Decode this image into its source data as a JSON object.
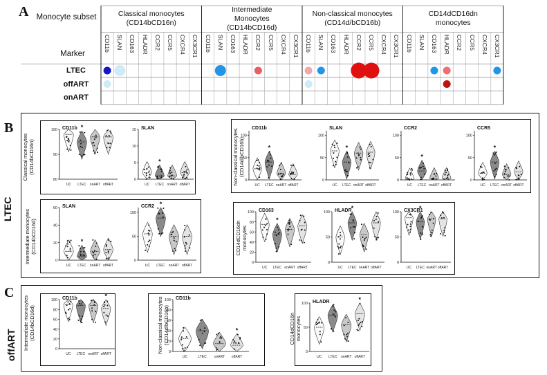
{
  "panelA": {
    "letter": "A",
    "subset_label": "Monocyte subset",
    "marker_label": "Marker",
    "groups": [
      {
        "name": "Classical monocytes\n(CD14bCD16n)"
      },
      {
        "name": "Intermediate\nMonocytes\n(CD14bCD16d)"
      },
      {
        "name": "Non-classical monocytes\n(CD14d/bCD16b)"
      },
      {
        "name": "CD14dCD16dn\nmonocytes"
      }
    ],
    "markers": [
      "CD11b",
      "SLAN",
      "CD163",
      "HLADR",
      "CCR2",
      "CCR5",
      "CXCR4",
      "CX3CR1"
    ],
    "rows": [
      "LTEC",
      "offART",
      "onART"
    ],
    "dots": [
      {
        "row": 0,
        "group": 0,
        "marker": 0,
        "size": "small",
        "color": "#1515c8"
      },
      {
        "row": 0,
        "group": 0,
        "marker": 1,
        "size": "medium",
        "color": "#cfeaf8"
      },
      {
        "row": 0,
        "group": 1,
        "marker": 1,
        "size": "medium",
        "color": "#2196e6"
      },
      {
        "row": 0,
        "group": 1,
        "marker": 4,
        "size": "small",
        "color": "#e86060"
      },
      {
        "row": 0,
        "group": 2,
        "marker": 0,
        "size": "small",
        "color": "#f2a8a8"
      },
      {
        "row": 0,
        "group": 2,
        "marker": 1,
        "size": "small",
        "color": "#2196e6"
      },
      {
        "row": 0,
        "group": 2,
        "marker": 4,
        "size": "large",
        "color": "#e01010"
      },
      {
        "row": 0,
        "group": 2,
        "marker": 5,
        "size": "large",
        "color": "#e01010"
      },
      {
        "row": 0,
        "group": 3,
        "marker": 2,
        "size": "small",
        "color": "#2196e6"
      },
      {
        "row": 0,
        "group": 3,
        "marker": 3,
        "size": "small",
        "color": "#ee7070"
      },
      {
        "row": 0,
        "group": 3,
        "marker": 7,
        "size": "small",
        "color": "#2196e6"
      },
      {
        "row": 1,
        "group": 0,
        "marker": 0,
        "size": "small",
        "color": "#cfeaf8"
      },
      {
        "row": 1,
        "group": 2,
        "marker": 0,
        "size": "small",
        "color": "#cfeaf8"
      },
      {
        "row": 1,
        "group": 3,
        "marker": 3,
        "size": "small",
        "color": "#c01010"
      }
    ]
  },
  "panelB": {
    "letter": "B",
    "side_label": "LTEC"
  },
  "panelC": {
    "letter": "C",
    "side_label": "offART"
  },
  "chart_data": [
    {
      "type": "violin",
      "id": "b_classical_cd11b",
      "title": "CD11b",
      "ylabel": "Classical monocytes\n(CD14bCD16n)",
      "yticks": [
        "80",
        "90",
        "100"
      ],
      "ylim": [
        80,
        100
      ],
      "categories": [
        "UC",
        "LTEC",
        "onART",
        "offART"
      ],
      "medians": [
        98,
        95,
        97,
        97
      ],
      "star": 1
    },
    {
      "type": "violin",
      "id": "b_classical_slan",
      "title": "SLAN",
      "yticks": [
        "0",
        "5",
        "10",
        "15"
      ],
      "ylim": [
        0,
        15
      ],
      "categories": [
        "UC",
        "LTEC",
        "onART",
        "offART"
      ],
      "medians": [
        2,
        1,
        1,
        2
      ],
      "star": 1
    },
    {
      "type": "violin",
      "id": "b_nc_cd11b",
      "title": "CD11b",
      "ylabel": "Non-classical monocytes\n(CD14d/bCD16b)",
      "yticks": [
        "0",
        "50",
        "100"
      ],
      "ylim": [
        0,
        110
      ],
      "categories": [
        "UC",
        "LTEC",
        "onART",
        "offART"
      ],
      "medians": [
        25,
        40,
        15,
        12
      ],
      "star": 1
    },
    {
      "type": "violin",
      "id": "b_nc_slan",
      "title": "SLAN",
      "yticks": [
        "0",
        "50",
        "100"
      ],
      "ylim": [
        0,
        110
      ],
      "categories": [
        "UC",
        "LTEC",
        "onART",
        "offART"
      ],
      "medians": [
        65,
        40,
        60,
        62
      ],
      "star": 1
    },
    {
      "type": "violin",
      "id": "b_nc_ccr2",
      "title": "CCR2",
      "yticks": [
        "0",
        "50",
        "100"
      ],
      "ylim": [
        0,
        110
      ],
      "categories": [
        "UC",
        "LTEC",
        "onART",
        "offART"
      ],
      "medians": [
        2,
        20,
        3,
        3
      ],
      "star": 1
    },
    {
      "type": "violin",
      "id": "b_nc_ccr5",
      "title": "CCR5",
      "yticks": [
        "0",
        "50",
        "100"
      ],
      "ylim": [
        0,
        110
      ],
      "categories": [
        "UC",
        "LTEC",
        "onART",
        "offART"
      ],
      "medians": [
        15,
        40,
        12,
        18
      ],
      "star": 1
    },
    {
      "type": "violin",
      "id": "b_int_slan",
      "title": "SLAN",
      "ylabel": "Intermediate monocytes\n(CD14bCD16d)",
      "yticks": [
        "0",
        "20",
        "40",
        "60"
      ],
      "ylim": [
        0,
        60
      ],
      "categories": [
        "UC",
        "LTEC",
        "onART",
        "offART"
      ],
      "medians": [
        10,
        4,
        10,
        12
      ],
      "star": 1
    },
    {
      "type": "violin",
      "id": "b_int_ccr2",
      "title": "CCR2",
      "yticks": [
        "0",
        "50",
        "100"
      ],
      "ylim": [
        0,
        110
      ],
      "categories": [
        "UC",
        "LTEC",
        "onART",
        "offART"
      ],
      "medians": [
        55,
        88,
        50,
        50
      ],
      "star": 1
    },
    {
      "type": "violin",
      "id": "b_dn_cd163",
      "title": "CD163",
      "ylabel": "CD14dCD16dn\nmonocytes",
      "yticks": [
        "0",
        "20",
        "40",
        "60",
        "80",
        "100"
      ],
      "ylim": [
        0,
        100
      ],
      "categories": [
        "UC",
        "LTEC",
        "onART",
        "offART"
      ],
      "medians": [
        75,
        55,
        65,
        72
      ],
      "star": 1
    },
    {
      "type": "violin",
      "id": "b_dn_hladr",
      "title": "HLADR",
      "yticks": [
        "0",
        "50",
        "100"
      ],
      "ylim": [
        0,
        100
      ],
      "categories": [
        "UC",
        "LTEC",
        "onART",
        "offART"
      ],
      "medians": [
        50,
        78,
        55,
        78
      ],
      "star": 1
    },
    {
      "type": "violin",
      "id": "b_dn_cx3cr1",
      "title": "CX3CR1",
      "yticks": [
        "0",
        "50",
        "100"
      ],
      "ylim": [
        0,
        100
      ],
      "categories": [
        "UC",
        "LTEC",
        "onART",
        "offART"
      ],
      "medians": [
        88,
        80,
        86,
        86
      ],
      "star": 1
    },
    {
      "type": "violin",
      "id": "c_int_cd11b",
      "title": "CD11b",
      "ylabel": "Intermediate monocytes\n(CD14bCD16d)",
      "yticks": [
        "0",
        "20",
        "40",
        "60",
        "80",
        "100"
      ],
      "ylim": [
        0,
        100
      ],
      "categories": [
        "UC",
        "LTEC",
        "onART",
        "offART"
      ],
      "medians": [
        90,
        88,
        88,
        82
      ],
      "star": 3
    },
    {
      "type": "violin",
      "id": "c_nc_cd11b",
      "title": "CD11b",
      "ylabel": "Non-classical monocytes\n(CD14d/bCD16b)",
      "yticks": [
        "0",
        "20",
        "40",
        "60",
        "80",
        "100"
      ],
      "ylim": [
        0,
        100
      ],
      "categories": [
        "UC",
        "LTEC",
        "onART",
        "offART"
      ],
      "medians": [
        25,
        40,
        15,
        12
      ],
      "star": 3
    },
    {
      "type": "violin",
      "id": "c_dn_hladr",
      "title": "HLADR",
      "ylabel": "CD14dCD16n\nmonocytes",
      "yticks": [
        "0",
        "50",
        "100"
      ],
      "ylim": [
        0,
        100
      ],
      "categories": [
        "UC",
        "LTEC",
        "onART",
        "offART"
      ],
      "medians": [
        50,
        75,
        55,
        78
      ],
      "star": 3
    }
  ]
}
